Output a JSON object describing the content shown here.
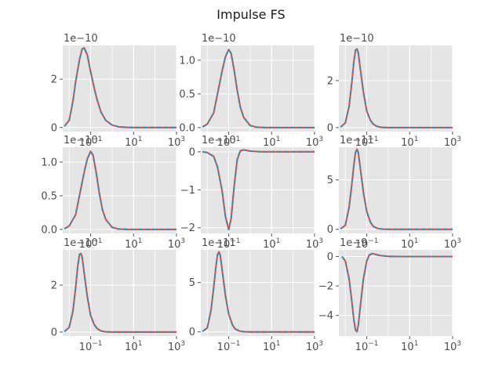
{
  "figure": {
    "title": "Impulse FS",
    "colors": {
      "background": "#ffffff",
      "axes_face": "#e5e5e5",
      "grid": "#ffffff",
      "text": "#4d4d4d",
      "series_1": "#E24A33",
      "series_2": "#348ABD"
    }
  },
  "chart_data": [
    {
      "type": "line",
      "xscale": "log",
      "xlim": [
        0.005,
        1000
      ],
      "ylim": [
        -0.17,
        3.4
      ],
      "offset_text": "1e−10",
      "xticks": [
        {
          "v": 0.1,
          "b": "10",
          "e": "−1"
        },
        {
          "v": 10,
          "b": "10",
          "e": "1"
        },
        {
          "v": 1000,
          "b": "10",
          "e": "3"
        }
      ],
      "yticks": [
        {
          "v": 0,
          "t": "0"
        },
        {
          "v": 2,
          "t": "2"
        }
      ],
      "series": [
        {
          "points": [
            [
              0.006,
              0.05
            ],
            [
              0.01,
              0.3
            ],
            [
              0.015,
              1.1
            ],
            [
              0.02,
              1.9
            ],
            [
              0.03,
              2.8
            ],
            [
              0.04,
              3.25
            ],
            [
              0.05,
              3.3
            ],
            [
              0.07,
              3.0
            ],
            [
              0.1,
              2.3
            ],
            [
              0.15,
              1.6
            ],
            [
              0.2,
              1.15
            ],
            [
              0.3,
              0.65
            ],
            [
              0.5,
              0.3
            ],
            [
              1,
              0.1
            ],
            [
              2,
              0.03
            ],
            [
              5,
              0.005
            ],
            [
              10,
              0
            ],
            [
              100,
              0
            ],
            [
              1000,
              0
            ]
          ]
        }
      ]
    },
    {
      "type": "line",
      "xscale": "log",
      "xlim": [
        0.005,
        1000
      ],
      "ylim": [
        -0.06,
        1.22
      ],
      "offset_text": "1e−10",
      "xticks": [
        {
          "v": 0.1,
          "b": "10",
          "e": "−1"
        },
        {
          "v": 10,
          "b": "10",
          "e": "1"
        },
        {
          "v": 1000,
          "b": "10",
          "e": "3"
        }
      ],
      "yticks": [
        {
          "v": 0,
          "t": "0.0"
        },
        {
          "v": 0.5,
          "t": "0.5"
        },
        {
          "v": 1,
          "t": "1.0"
        }
      ],
      "series": [
        {
          "points": [
            [
              0.006,
              0.01
            ],
            [
              0.01,
              0.05
            ],
            [
              0.02,
              0.22
            ],
            [
              0.03,
              0.5
            ],
            [
              0.05,
              0.85
            ],
            [
              0.07,
              1.05
            ],
            [
              0.1,
              1.16
            ],
            [
              0.13,
              1.1
            ],
            [
              0.18,
              0.85
            ],
            [
              0.25,
              0.55
            ],
            [
              0.35,
              0.3
            ],
            [
              0.5,
              0.15
            ],
            [
              1,
              0.03
            ],
            [
              2,
              0.005
            ],
            [
              5,
              0
            ],
            [
              1000,
              0
            ]
          ]
        }
      ]
    },
    {
      "type": "line",
      "xscale": "log",
      "xlim": [
        0.005,
        1000
      ],
      "ylim": [
        -0.17,
        3.5
      ],
      "offset_text": "1e−10",
      "xticks": [
        {
          "v": 0.1,
          "b": "10",
          "e": "−1"
        },
        {
          "v": 10,
          "b": "10",
          "e": "1"
        },
        {
          "v": 1000,
          "b": "10",
          "e": "3"
        }
      ],
      "yticks": [
        {
          "v": 0,
          "t": "0"
        },
        {
          "v": 2,
          "t": "2"
        }
      ],
      "series": [
        {
          "points": [
            [
              0.006,
              0.02
            ],
            [
              0.01,
              0.2
            ],
            [
              0.015,
              0.9
            ],
            [
              0.02,
              1.9
            ],
            [
              0.025,
              2.8
            ],
            [
              0.03,
              3.3
            ],
            [
              0.035,
              3.35
            ],
            [
              0.04,
              3.2
            ],
            [
              0.05,
              2.5
            ],
            [
              0.07,
              1.5
            ],
            [
              0.1,
              0.7
            ],
            [
              0.15,
              0.3
            ],
            [
              0.2,
              0.15
            ],
            [
              0.3,
              0.05
            ],
            [
              0.5,
              0.01
            ],
            [
              1,
              0
            ],
            [
              1000,
              0
            ]
          ]
        }
      ]
    },
    {
      "type": "line",
      "xscale": "log",
      "xlim": [
        0.005,
        1000
      ],
      "ylim": [
        -0.06,
        1.22
      ],
      "offset_text": "1e−10",
      "xticks": [
        {
          "v": 0.1,
          "b": "10",
          "e": "−1"
        },
        {
          "v": 10,
          "b": "10",
          "e": "1"
        },
        {
          "v": 1000,
          "b": "10",
          "e": "3"
        }
      ],
      "yticks": [
        {
          "v": 0,
          "t": "0.0"
        },
        {
          "v": 0.5,
          "t": "0.5"
        },
        {
          "v": 1,
          "t": "1.0"
        }
      ],
      "series": [
        {
          "points": [
            [
              0.006,
              0.01
            ],
            [
              0.01,
              0.05
            ],
            [
              0.02,
              0.22
            ],
            [
              0.03,
              0.5
            ],
            [
              0.05,
              0.85
            ],
            [
              0.07,
              1.05
            ],
            [
              0.1,
              1.16
            ],
            [
              0.13,
              1.1
            ],
            [
              0.18,
              0.85
            ],
            [
              0.25,
              0.55
            ],
            [
              0.35,
              0.3
            ],
            [
              0.5,
              0.15
            ],
            [
              1,
              0.03
            ],
            [
              2,
              0.005
            ],
            [
              5,
              0
            ],
            [
              1000,
              0
            ]
          ]
        }
      ]
    },
    {
      "type": "line",
      "xscale": "log",
      "xlim": [
        0.005,
        1000
      ],
      "ylim": [
        -2.15,
        0.12
      ],
      "offset_text": "1e−10",
      "xticks": [
        {
          "v": 0.1,
          "b": "10",
          "e": "−1"
        },
        {
          "v": 10,
          "b": "10",
          "e": "1"
        },
        {
          "v": 1000,
          "b": "10",
          "e": "3"
        }
      ],
      "yticks": [
        {
          "v": 0,
          "t": "0"
        },
        {
          "v": -1,
          "t": "−1"
        },
        {
          "v": -2,
          "t": "−2"
        }
      ],
      "series": [
        {
          "points": [
            [
              0.006,
              0
            ],
            [
              0.01,
              -0.02
            ],
            [
              0.02,
              -0.12
            ],
            [
              0.03,
              -0.4
            ],
            [
              0.05,
              -1.05
            ],
            [
              0.07,
              -1.7
            ],
            [
              0.1,
              -2.05
            ],
            [
              0.13,
              -1.75
            ],
            [
              0.18,
              -0.9
            ],
            [
              0.25,
              -0.2
            ],
            [
              0.35,
              0.03
            ],
            [
              0.5,
              0.05
            ],
            [
              1,
              0.02
            ],
            [
              3,
              0
            ],
            [
              1000,
              0
            ]
          ]
        }
      ]
    },
    {
      "type": "line",
      "xscale": "log",
      "xlim": [
        0.005,
        1000
      ],
      "ylim": [
        -0.42,
        8.3
      ],
      "offset_text": "1e−11",
      "xticks": [
        {
          "v": 0.1,
          "b": "10",
          "e": "−1"
        },
        {
          "v": 10,
          "b": "10",
          "e": "1"
        },
        {
          "v": 1000,
          "b": "10",
          "e": "3"
        }
      ],
      "yticks": [
        {
          "v": 0,
          "t": "0"
        },
        {
          "v": 5,
          "t": "5"
        }
      ],
      "series": [
        {
          "points": [
            [
              0.006,
              0.05
            ],
            [
              0.01,
              0.4
            ],
            [
              0.015,
              2.2
            ],
            [
              0.02,
              4.5
            ],
            [
              0.025,
              6.5
            ],
            [
              0.03,
              7.8
            ],
            [
              0.035,
              8.1
            ],
            [
              0.04,
              7.8
            ],
            [
              0.05,
              6.2
            ],
            [
              0.07,
              3.7
            ],
            [
              0.1,
              1.8
            ],
            [
              0.15,
              0.7
            ],
            [
              0.2,
              0.3
            ],
            [
              0.3,
              0.1
            ],
            [
              0.5,
              0.02
            ],
            [
              1,
              0
            ],
            [
              1000,
              0
            ]
          ]
        }
      ]
    },
    {
      "type": "line",
      "xscale": "log",
      "xlim": [
        0.005,
        1000
      ],
      "ylim": [
        -0.17,
        3.5
      ],
      "offset_text": "1e−10",
      "xticks": [
        {
          "v": 0.1,
          "b": "10",
          "e": "−1"
        },
        {
          "v": 10,
          "b": "10",
          "e": "1"
        },
        {
          "v": 1000,
          "b": "10",
          "e": "3"
        }
      ],
      "yticks": [
        {
          "v": 0,
          "t": "0"
        },
        {
          "v": 2,
          "t": "2"
        }
      ],
      "series": [
        {
          "points": [
            [
              0.006,
              0.02
            ],
            [
              0.01,
              0.2
            ],
            [
              0.015,
              0.9
            ],
            [
              0.02,
              1.9
            ],
            [
              0.025,
              2.8
            ],
            [
              0.03,
              3.3
            ],
            [
              0.035,
              3.35
            ],
            [
              0.04,
              3.2
            ],
            [
              0.05,
              2.5
            ],
            [
              0.07,
              1.5
            ],
            [
              0.1,
              0.7
            ],
            [
              0.15,
              0.3
            ],
            [
              0.2,
              0.15
            ],
            [
              0.3,
              0.05
            ],
            [
              0.5,
              0.01
            ],
            [
              1,
              0
            ],
            [
              1000,
              0
            ]
          ]
        }
      ]
    },
    {
      "type": "line",
      "xscale": "log",
      "xlim": [
        0.005,
        1000
      ],
      "ylim": [
        -0.42,
        8.3
      ],
      "offset_text": "1e−11",
      "xticks": [
        {
          "v": 0.1,
          "b": "10",
          "e": "−1"
        },
        {
          "v": 10,
          "b": "10",
          "e": "1"
        },
        {
          "v": 1000,
          "b": "10",
          "e": "3"
        }
      ],
      "yticks": [
        {
          "v": 0,
          "t": "0"
        },
        {
          "v": 5,
          "t": "5"
        }
      ],
      "series": [
        {
          "points": [
            [
              0.006,
              0.05
            ],
            [
              0.01,
              0.4
            ],
            [
              0.015,
              2.2
            ],
            [
              0.02,
              4.5
            ],
            [
              0.025,
              6.5
            ],
            [
              0.03,
              7.8
            ],
            [
              0.035,
              8.1
            ],
            [
              0.04,
              7.8
            ],
            [
              0.05,
              6.2
            ],
            [
              0.07,
              3.7
            ],
            [
              0.1,
              1.8
            ],
            [
              0.15,
              0.7
            ],
            [
              0.2,
              0.3
            ],
            [
              0.3,
              0.1
            ],
            [
              0.5,
              0.02
            ],
            [
              1,
              0
            ],
            [
              1000,
              0
            ]
          ]
        }
      ]
    },
    {
      "type": "line",
      "xscale": "log",
      "xlim": [
        0.005,
        1000
      ],
      "ylim": [
        -5.4,
        0.45
      ],
      "offset_text": "1e−9",
      "xticks": [
        {
          "v": 0.1,
          "b": "10",
          "e": "−1"
        },
        {
          "v": 10,
          "b": "10",
          "e": "1"
        },
        {
          "v": 1000,
          "b": "10",
          "e": "3"
        }
      ],
      "yticks": [
        {
          "v": 0,
          "t": "0"
        },
        {
          "v": -2,
          "t": "−2"
        },
        {
          "v": -4,
          "t": "−4"
        }
      ],
      "series": [
        {
          "points": [
            [
              0.007,
              0
            ],
            [
              0.01,
              -0.3
            ],
            [
              0.015,
              -1.5
            ],
            [
              0.02,
              -3.0
            ],
            [
              0.025,
              -4.3
            ],
            [
              0.03,
              -5.0
            ],
            [
              0.035,
              -5.1
            ],
            [
              0.04,
              -4.7
            ],
            [
              0.05,
              -3.4
            ],
            [
              0.07,
              -1.5
            ],
            [
              0.1,
              -0.3
            ],
            [
              0.13,
              0.1
            ],
            [
              0.18,
              0.2
            ],
            [
              0.25,
              0.15
            ],
            [
              0.4,
              0.07
            ],
            [
              1,
              0.01
            ],
            [
              3,
              0
            ],
            [
              1000,
              0
            ]
          ]
        }
      ]
    }
  ]
}
